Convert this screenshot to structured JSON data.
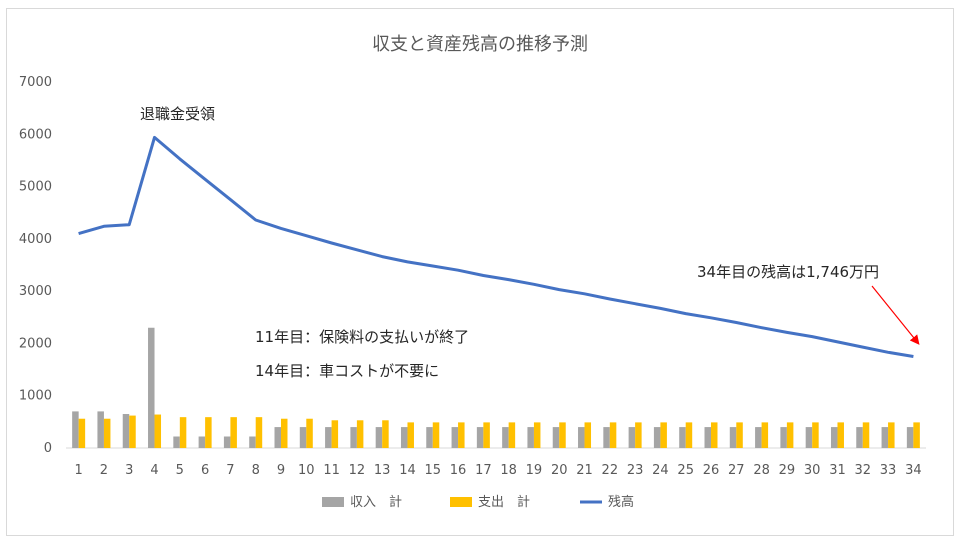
{
  "chart_data": {
    "type": "bar",
    "title": "収支と資産残高の推移予測",
    "categories": [
      "1",
      "2",
      "3",
      "4",
      "5",
      "6",
      "7",
      "8",
      "9",
      "10",
      "11",
      "12",
      "13",
      "14",
      "15",
      "16",
      "17",
      "18",
      "19",
      "20",
      "21",
      "22",
      "23",
      "24",
      "25",
      "26",
      "27",
      "28",
      "29",
      "30",
      "31",
      "32",
      "33",
      "34"
    ],
    "ylim": [
      0,
      7000
    ],
    "yticks": [
      "0",
      "1000",
      "2000",
      "3000",
      "4000",
      "5000",
      "6000",
      "7000"
    ],
    "series": [
      {
        "name": "収入　計",
        "type": "bar",
        "color": "#a5a5a5",
        "values": [
          700,
          700,
          650,
          2300,
          220,
          220,
          220,
          220,
          400,
          400,
          400,
          400,
          400,
          400,
          400,
          400,
          400,
          400,
          400,
          400,
          400,
          400,
          400,
          400,
          400,
          400,
          400,
          400,
          400,
          400,
          400,
          400,
          400,
          400
        ]
      },
      {
        "name": "支出　計",
        "type": "bar",
        "color": "#ffc000",
        "values": [
          560,
          560,
          620,
          640,
          590,
          590,
          590,
          590,
          560,
          560,
          530,
          530,
          530,
          490,
          490,
          490,
          490,
          490,
          490,
          490,
          490,
          490,
          490,
          490,
          490,
          490,
          490,
          490,
          490,
          490,
          490,
          490,
          490,
          490
        ]
      },
      {
        "name": "残高",
        "type": "line",
        "color": "#4472c4",
        "values": [
          4100,
          4240,
          4270,
          5940,
          5530,
          5140,
          4750,
          4360,
          4200,
          4060,
          3920,
          3790,
          3660,
          3560,
          3480,
          3400,
          3300,
          3220,
          3130,
          3030,
          2950,
          2850,
          2760,
          2670,
          2570,
          2490,
          2400,
          2300,
          2210,
          2130,
          2030,
          1930,
          1830,
          1750
        ]
      }
    ],
    "annotations": {
      "retirement": "退職金受領",
      "note1": "11年目：保険料の支払いが終了",
      "note2": "14年目：車コストが不要に",
      "final": "34年目の残高は1,746万円"
    },
    "legend_position": "bottom",
    "grid": false
  }
}
